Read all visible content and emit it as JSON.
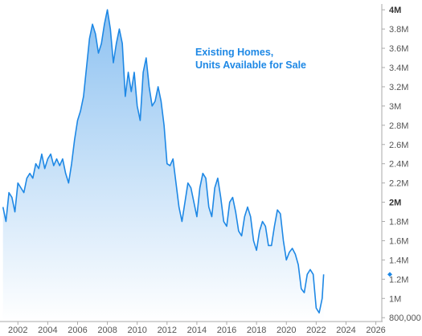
{
  "chart_data": {
    "type": "area",
    "title": "",
    "annotation_lines": [
      "Existing Homes,",
      "Units Available for Sale"
    ],
    "xlabel": "",
    "ylabel": "",
    "x_ticks": [
      "2002",
      "2004",
      "2006",
      "2008",
      "2010",
      "2012",
      "2014",
      "2016",
      "2018",
      "2020",
      "2022",
      "2024",
      "2026"
    ],
    "y_ticks": [
      {
        "value": 800000,
        "label": "800,000",
        "bold": false
      },
      {
        "value": 1000000,
        "label": "1M",
        "bold": false
      },
      {
        "value": 1200000,
        "label": "1.2M",
        "bold": false
      },
      {
        "value": 1400000,
        "label": "1.4M",
        "bold": false
      },
      {
        "value": 1600000,
        "label": "1.6M",
        "bold": false
      },
      {
        "value": 1800000,
        "label": "1.8M",
        "bold": false
      },
      {
        "value": 2000000,
        "label": "2M",
        "bold": true
      },
      {
        "value": 2200000,
        "label": "2.2M",
        "bold": false
      },
      {
        "value": 2400000,
        "label": "2.4M",
        "bold": false
      },
      {
        "value": 2600000,
        "label": "2.6M",
        "bold": false
      },
      {
        "value": 2800000,
        "label": "2.8M",
        "bold": false
      },
      {
        "value": 3000000,
        "label": "3M",
        "bold": false
      },
      {
        "value": 3200000,
        "label": "3.2M",
        "bold": false
      },
      {
        "value": 3400000,
        "label": "3.4M",
        "bold": false
      },
      {
        "value": 3600000,
        "label": "3.6M",
        "bold": false
      },
      {
        "value": 3800000,
        "label": "3.8M",
        "bold": false
      },
      {
        "value": 4000000,
        "label": "4M",
        "bold": true
      }
    ],
    "xlim": [
      2000.8,
      2026.4
    ],
    "ylim": [
      760000,
      4060000
    ],
    "grid": false,
    "legend": "none",
    "last_value": 1250000,
    "series": [
      {
        "x": [
          2001.0,
          2001.2,
          2001.4,
          2001.6,
          2001.8,
          2002.0,
          2002.2,
          2002.4,
          2002.6,
          2002.8,
          2003.0,
          2003.2,
          2003.4,
          2003.6,
          2003.8,
          2004.0,
          2004.2,
          2004.4,
          2004.6,
          2004.8,
          2005.0,
          2005.2,
          2005.4,
          2005.6,
          2005.8,
          2006.0,
          2006.2,
          2006.4,
          2006.6,
          2006.8,
          2007.0,
          2007.2,
          2007.4,
          2007.6,
          2007.8,
          2008.0,
          2008.2,
          2008.4,
          2008.6,
          2008.8,
          2009.0,
          2009.2,
          2009.4,
          2009.6,
          2009.8,
          2010.0,
          2010.2,
          2010.4,
          2010.6,
          2010.8,
          2011.0,
          2011.2,
          2011.4,
          2011.6,
          2011.8,
          2012.0,
          2012.2,
          2012.4,
          2012.6,
          2012.8,
          2013.0,
          2013.2,
          2013.4,
          2013.6,
          2013.8,
          2014.0,
          2014.2,
          2014.4,
          2014.6,
          2014.8,
          2015.0,
          2015.2,
          2015.4,
          2015.6,
          2015.8,
          2016.0,
          2016.2,
          2016.4,
          2016.6,
          2016.8,
          2017.0,
          2017.2,
          2017.4,
          2017.6,
          2017.8,
          2018.0,
          2018.2,
          2018.4,
          2018.6,
          2018.8,
          2019.0,
          2019.2,
          2019.4,
          2019.6,
          2019.8,
          2020.0,
          2020.2,
          2020.4,
          2020.6,
          2020.8,
          2021.0,
          2021.2,
          2021.4,
          2021.6,
          2021.8,
          2022.0,
          2022.2,
          2022.4,
          2022.5
        ],
        "y": [
          1950000,
          1800000,
          2100000,
          2050000,
          1900000,
          2200000,
          2150000,
          2100000,
          2250000,
          2300000,
          2250000,
          2400000,
          2350000,
          2500000,
          2350000,
          2450000,
          2500000,
          2380000,
          2450000,
          2380000,
          2450000,
          2300000,
          2200000,
          2400000,
          2650000,
          2850000,
          2950000,
          3100000,
          3400000,
          3700000,
          3850000,
          3750000,
          3550000,
          3650000,
          3850000,
          4000000,
          3800000,
          3450000,
          3650000,
          3800000,
          3650000,
          3100000,
          3350000,
          3150000,
          3350000,
          3000000,
          2850000,
          3350000,
          3500000,
          3200000,
          3000000,
          3050000,
          3200000,
          3050000,
          2800000,
          2400000,
          2380000,
          2450000,
          2200000,
          1950000,
          1800000,
          2000000,
          2200000,
          2150000,
          2000000,
          1850000,
          2150000,
          2300000,
          2250000,
          1950000,
          1850000,
          2150000,
          2250000,
          2050000,
          1800000,
          1750000,
          2000000,
          2050000,
          1900000,
          1700000,
          1650000,
          1850000,
          1950000,
          1850000,
          1600000,
          1500000,
          1700000,
          1800000,
          1750000,
          1550000,
          1550000,
          1750000,
          1920000,
          1880000,
          1600000,
          1400000,
          1480000,
          1520000,
          1460000,
          1350000,
          1100000,
          1060000,
          1250000,
          1300000,
          1250000,
          900000,
          850000,
          1000000,
          1250000
        ]
      }
    ],
    "colors": {
      "line": "#1e88e5",
      "fill_top": "#8ec2f1",
      "fill_bottom": "#ffffff",
      "annotation": "#1e88e5",
      "axis": "#aaaaaa",
      "marker": "#1e88e5"
    }
  }
}
